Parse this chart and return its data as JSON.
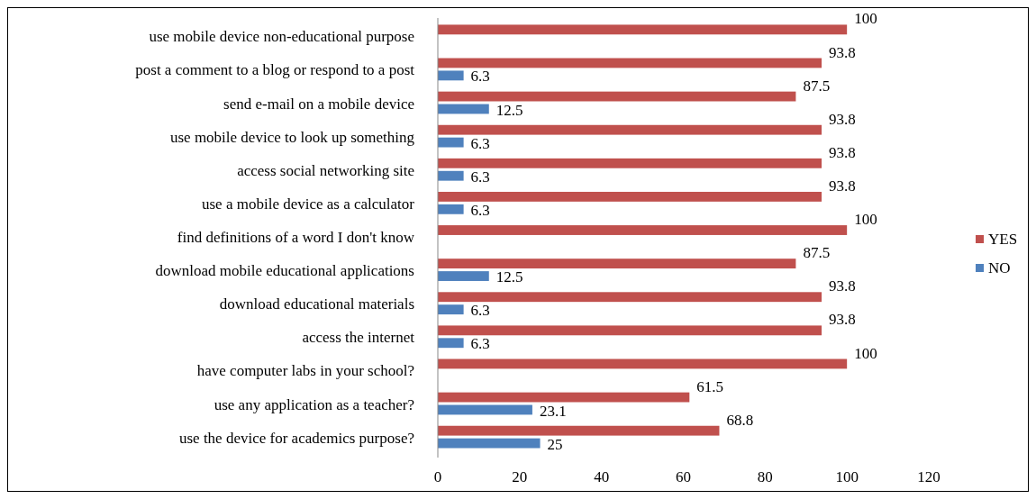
{
  "chart_data": {
    "type": "bar",
    "orientation": "horizontal",
    "categories": [
      "use mobile device non-educational purpose",
      "post a comment to a blog or respond to a post",
      "send e-mail  on a mobile device",
      "use mobile device to look up something",
      "access social networking site",
      "use a mobile device as a calculator",
      "find definitions  of a word I don't know",
      "download mobile educational applications",
      "download educational  materials",
      "access the internet",
      "have computer labs in your school?",
      "use any application  as a teacher?",
      "use the device for academics purpose?"
    ],
    "series": [
      {
        "name": "YES",
        "color": "#c0504d",
        "values": [
          100,
          93.8,
          87.5,
          93.8,
          93.8,
          93.8,
          100,
          87.5,
          93.8,
          93.8,
          100,
          61.5,
          68.8
        ]
      },
      {
        "name": "NO",
        "color": "#4f81bd",
        "values": [
          null,
          6.3,
          12.5,
          6.3,
          6.3,
          6.3,
          null,
          12.5,
          6.3,
          6.3,
          null,
          23.1,
          25
        ]
      }
    ],
    "xlim": [
      0,
      120
    ],
    "xticks": [
      0,
      20,
      40,
      60,
      80,
      100,
      120
    ],
    "data_labels": true,
    "legend": "right",
    "grid": false
  }
}
